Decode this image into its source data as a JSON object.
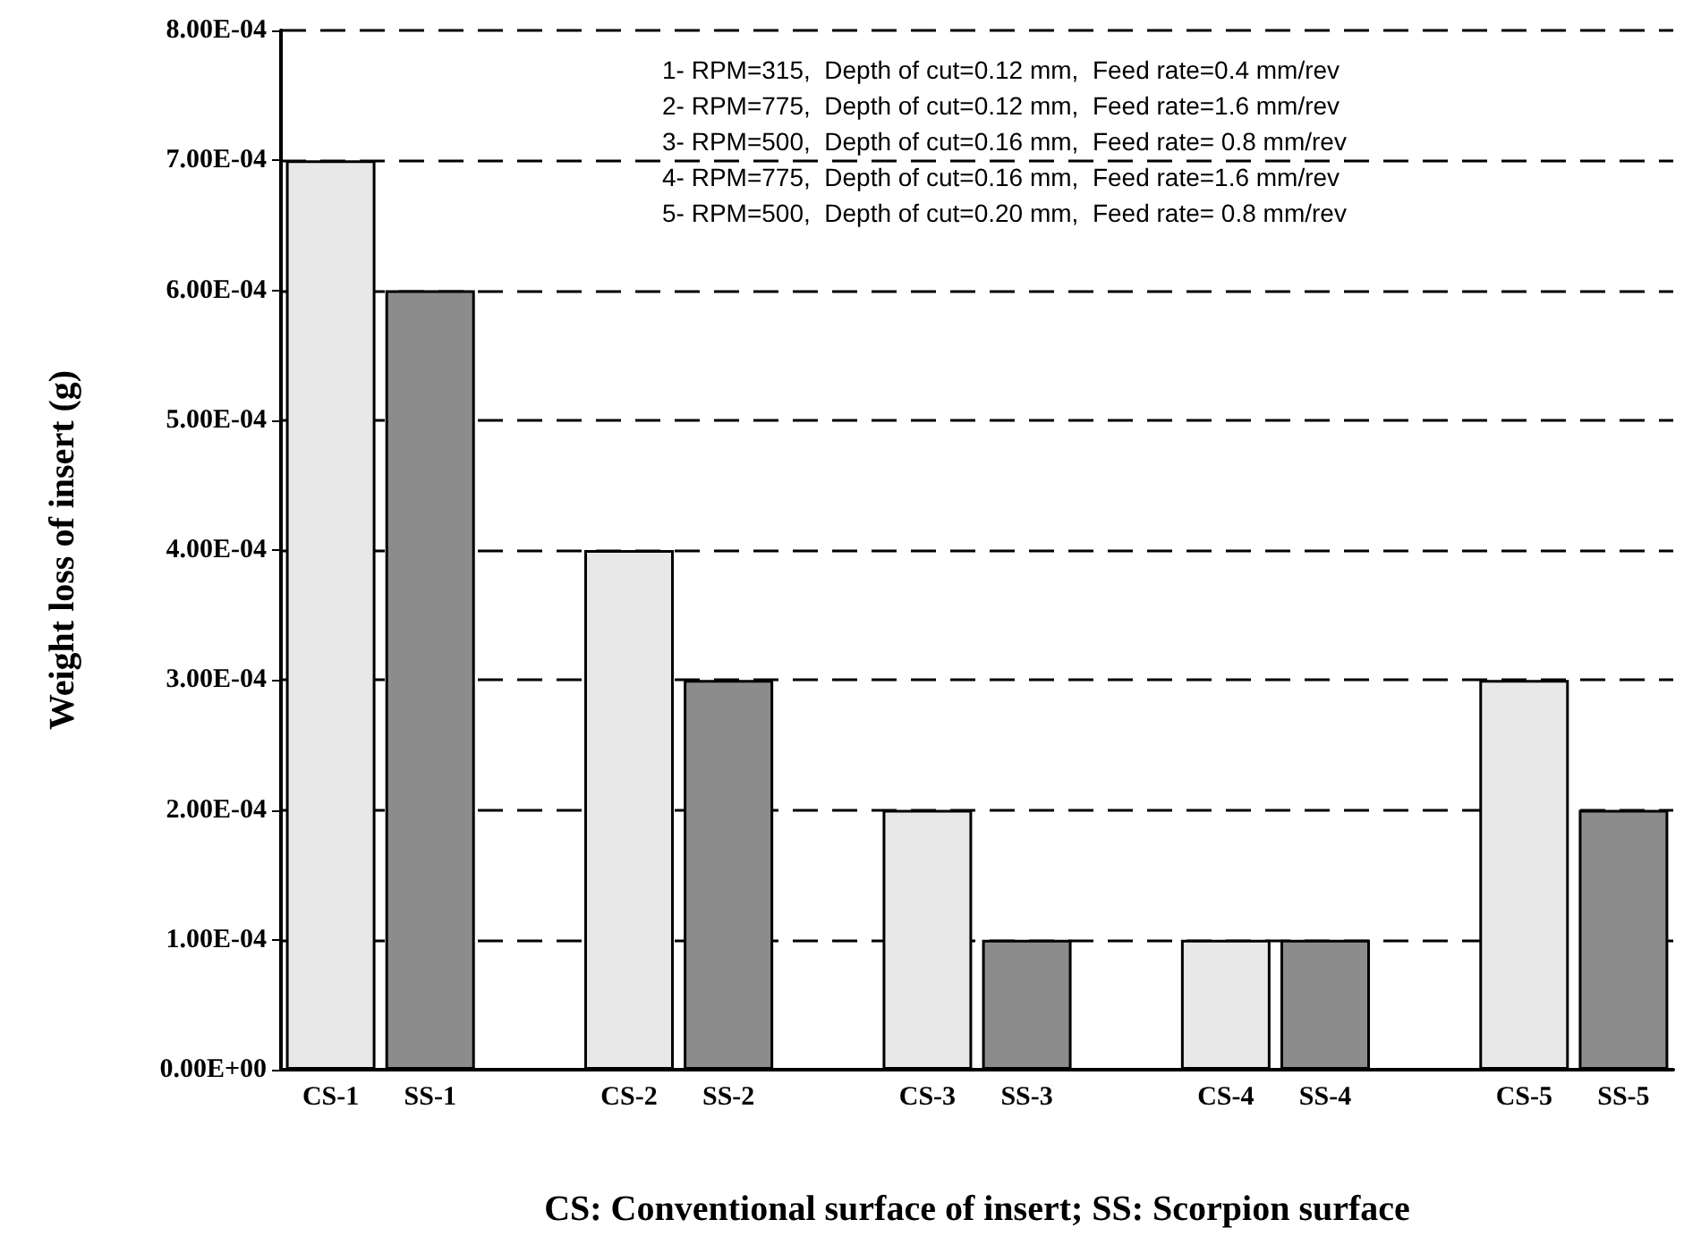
{
  "chart_data": {
    "type": "bar",
    "ylabel": "Weight loss of insert (g)",
    "xlabel": "CS: Conventional surface of insert; SS: Scorpion surface",
    "categories": [
      "CS-1",
      "SS-1",
      null,
      "CS-2",
      "SS-2",
      null,
      "CS-3",
      "SS-3",
      null,
      "CS-4",
      "SS-4",
      null,
      "CS-5",
      "SS-5"
    ],
    "values": [
      0.0007,
      0.0006,
      null,
      0.0004,
      0.0003,
      null,
      0.0002,
      0.0001,
      null,
      0.0001,
      0.0001,
      null,
      0.0003,
      0.0002
    ],
    "colors": [
      "#e8e8e8",
      "#8c8c8c",
      null,
      "#e8e8e8",
      "#8c8c8c",
      null,
      "#e8e8e8",
      "#8c8c8c",
      null,
      "#e8e8e8",
      "#8c8c8c",
      null,
      "#e8e8e8",
      "#8c8c8c"
    ],
    "ylim": [
      0,
      0.0008
    ],
    "yticks": [
      {
        "value": 0,
        "label": "0.00E+00"
      },
      {
        "value": 0.0001,
        "label": "1.00E-04"
      },
      {
        "value": 0.0002,
        "label": "2.00E-04"
      },
      {
        "value": 0.0003,
        "label": "3.00E-04"
      },
      {
        "value": 0.0004,
        "label": "4.00E-04"
      },
      {
        "value": 0.0005,
        "label": "5.00E-04"
      },
      {
        "value": 0.0006,
        "label": "6.00E-04"
      },
      {
        "value": 0.0007,
        "label": "7.00E-04"
      },
      {
        "value": 0.0008,
        "label": "8.00E-04"
      }
    ],
    "grid": "y",
    "annotations": [
      "1- RPM=315,  Depth of cut=0.12 mm,  Feed rate=0.4 mm/rev",
      "2- RPM=775,  Depth of cut=0.12 mm,  Feed rate=1.6 mm/rev",
      "3- RPM=500,  Depth of cut=0.16 mm,  Feed rate= 0.8 mm/rev",
      "4- RPM=775,  Depth of cut=0.16 mm,  Feed rate=1.6 mm/rev",
      "5- RPM=500,  Depth of cut=0.20 mm,  Feed rate= 0.8 mm/rev"
    ]
  }
}
